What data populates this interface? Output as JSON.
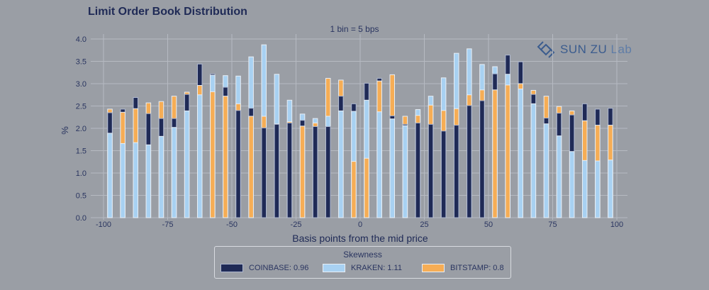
{
  "title": "Limit Order Book Distribution",
  "subtitle": "1 bin = 5 bps",
  "logo": {
    "text": "SUN ZU",
    "lab": "Lab"
  },
  "colors": {
    "background": "#9a9ea5",
    "coinbase": "#1f2a56",
    "kraken": "#a8d1f2",
    "bitstamp": "#f6ad55"
  },
  "legend": {
    "title": "Skewness",
    "items": [
      {
        "label": "COINBASE: 0.96",
        "color": "#1f2a56"
      },
      {
        "label": "KRAKEN: 1.11",
        "color": "#a8d1f2"
      },
      {
        "label": "BITSTAMP: 0.8",
        "color": "#f6ad55"
      }
    ]
  },
  "chart_data": {
    "type": "bar",
    "title": "Limit Order Book Distribution",
    "subtitle": "1 bin = 5 bps",
    "xlabel": "Basis points from the mid price",
    "ylabel": "%",
    "xlim": [
      -100,
      100
    ],
    "ylim": [
      0,
      4.0
    ],
    "xticks": [
      -100,
      -75,
      -50,
      -25,
      0,
      25,
      50,
      75,
      100
    ],
    "yticks": [
      0.0,
      0.5,
      1.0,
      1.5,
      2.0,
      2.5,
      3.0,
      3.5,
      4.0
    ],
    "ytick_labels": [
      "0.0",
      "0.5",
      "1.0",
      "1.5",
      "2.0",
      "2.5",
      "3.0",
      "3.5",
      "4.0"
    ],
    "grid": true,
    "bin_width": 5,
    "series": [
      {
        "name": "COINBASE",
        "x": [
          -97.5,
          -92.5,
          -87.5,
          -82.5,
          -77.5,
          -72.5,
          -67.5,
          -62.5,
          -57.5,
          -52.5,
          -47.5,
          -42.5,
          -37.5,
          -32.5,
          -27.5,
          -22.5,
          -17.5,
          -12.5,
          -7.5,
          -2.5,
          2.5,
          7.5,
          12.5,
          17.5,
          22.5,
          27.5,
          32.5,
          37.5,
          42.5,
          47.5,
          52.5,
          57.5,
          62.5,
          67.5,
          72.5,
          77.5,
          82.5,
          87.5,
          92.5,
          97.5
        ],
        "values": [
          2.35,
          2.43,
          2.69,
          2.33,
          2.22,
          2.22,
          2.76,
          3.44,
          3.22,
          2.92,
          2.4,
          2.45,
          2.01,
          2.09,
          2.12,
          2.18,
          2.04,
          2.04,
          2.72,
          2.55,
          3.01,
          3.12,
          2.28,
          2.09,
          2.12,
          2.09,
          1.94,
          2.07,
          2.51,
          2.62,
          3.22,
          3.64,
          3.49,
          2.76,
          2.23,
          2.34,
          2.3,
          2.55,
          2.43,
          2.45
        ]
      },
      {
        "name": "KRAKEN",
        "x": [
          -97.5,
          -92.5,
          -87.5,
          -82.5,
          -77.5,
          -72.5,
          -67.5,
          -62.5,
          -57.5,
          -52.5,
          -47.5,
          -42.5,
          -37.5,
          -32.5,
          -27.5,
          -22.5,
          -17.5,
          -12.5,
          -7.5,
          -2.5,
          2.5,
          7.5,
          12.5,
          17.5,
          22.5,
          27.5,
          32.5,
          37.5,
          42.5,
          47.5,
          52.5,
          57.5,
          62.5,
          67.5,
          72.5,
          77.5,
          82.5,
          87.5,
          92.5,
          97.5
        ],
        "values": [
          1.89,
          1.66,
          1.68,
          1.63,
          1.82,
          2.02,
          2.39,
          2.75,
          3.19,
          3.18,
          3.17,
          3.6,
          3.87,
          3.21,
          2.63,
          2.32,
          2.22,
          2.27,
          2.39,
          2.38,
          2.63,
          2.37,
          2.21,
          2.06,
          2.42,
          2.72,
          3.13,
          3.68,
          3.78,
          3.43,
          3.38,
          3.21,
          2.88,
          2.55,
          2.1,
          1.83,
          1.48,
          1.28,
          1.27,
          1.29
        ]
      },
      {
        "name": "BITSTAMP",
        "x": [
          -97.5,
          -92.5,
          -87.5,
          -82.5,
          -77.5,
          -72.5,
          -67.5,
          -62.5,
          -57.5,
          -52.5,
          -47.5,
          -42.5,
          -37.5,
          -32.5,
          -27.5,
          -22.5,
          -17.5,
          -12.5,
          -7.5,
          -2.5,
          2.5,
          7.5,
          12.5,
          17.5,
          22.5,
          27.5,
          32.5,
          37.5,
          42.5,
          47.5,
          52.5,
          57.5,
          62.5,
          67.5,
          72.5,
          77.5,
          82.5,
          87.5,
          92.5,
          97.5
        ],
        "values": [
          2.43,
          2.36,
          2.44,
          2.57,
          2.6,
          2.72,
          2.81,
          2.96,
          2.82,
          2.72,
          2.55,
          2.27,
          2.27,
          2.1,
          2.15,
          2.05,
          2.12,
          3.12,
          3.08,
          1.26,
          1.33,
          3.06,
          3.2,
          2.27,
          2.29,
          2.52,
          2.4,
          2.44,
          2.75,
          2.86,
          2.86,
          2.97,
          3.0,
          2.85,
          2.72,
          2.49,
          2.39,
          2.17,
          2.07,
          2.07
        ]
      }
    ]
  }
}
